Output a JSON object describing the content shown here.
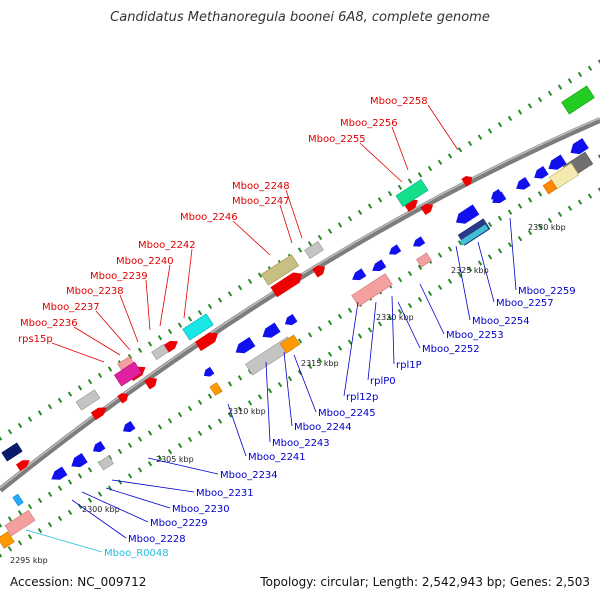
{
  "title": "Candidatus Methanoregula boonei 6A8, complete genome",
  "footer": {
    "accession": "Accession: NC_009712",
    "topology": "Topology: circular; Length: 2,542,943 bp; Genes: 2,503"
  },
  "colors": {
    "backbone": "#8a8a8a",
    "forward_label": "#e00000",
    "reverse_label": "#0000cc",
    "rna_label": "#22bbe0",
    "tick": "#2a8a2a"
  },
  "ticks": [
    {
      "label": "2295 kbp"
    },
    {
      "label": "2300 kbp"
    },
    {
      "label": "2305 kbp"
    },
    {
      "label": "2310 kbp"
    },
    {
      "label": "2315 kbp"
    },
    {
      "label": "2320 kbp"
    },
    {
      "label": "2325 kbp"
    },
    {
      "label": "2330 kbp"
    }
  ],
  "top_labels": [
    {
      "text": "Mboo_2258"
    },
    {
      "text": "Mboo_2256"
    },
    {
      "text": "Mboo_2255"
    },
    {
      "text": "Mboo_2248"
    },
    {
      "text": "Mboo_2247"
    },
    {
      "text": "Mboo_2246"
    },
    {
      "text": "Mboo_2242"
    },
    {
      "text": "Mboo_2240"
    },
    {
      "text": "Mboo_2239"
    },
    {
      "text": "Mboo_2238"
    },
    {
      "text": "Mboo_2237"
    },
    {
      "text": "Mboo_2236"
    },
    {
      "text": "rps15p"
    }
  ],
  "bottom_labels": [
    {
      "text": "Mboo_2259"
    },
    {
      "text": "Mboo_2257"
    },
    {
      "text": "Mboo_2254"
    },
    {
      "text": "Mboo_2253"
    },
    {
      "text": "Mboo_2252"
    },
    {
      "text": "rpl1P"
    },
    {
      "text": "rplP0"
    },
    {
      "text": "rpl12p"
    },
    {
      "text": "Mboo_2245"
    },
    {
      "text": "Mboo_2244"
    },
    {
      "text": "Mboo_2243"
    },
    {
      "text": "Mboo_2241"
    },
    {
      "text": "Mboo_2234"
    },
    {
      "text": "Mboo_2231"
    },
    {
      "text": "Mboo_2230"
    },
    {
      "text": "Mboo_2229"
    },
    {
      "text": "Mboo_2228"
    },
    {
      "text": "Mboo_R0048"
    }
  ]
}
